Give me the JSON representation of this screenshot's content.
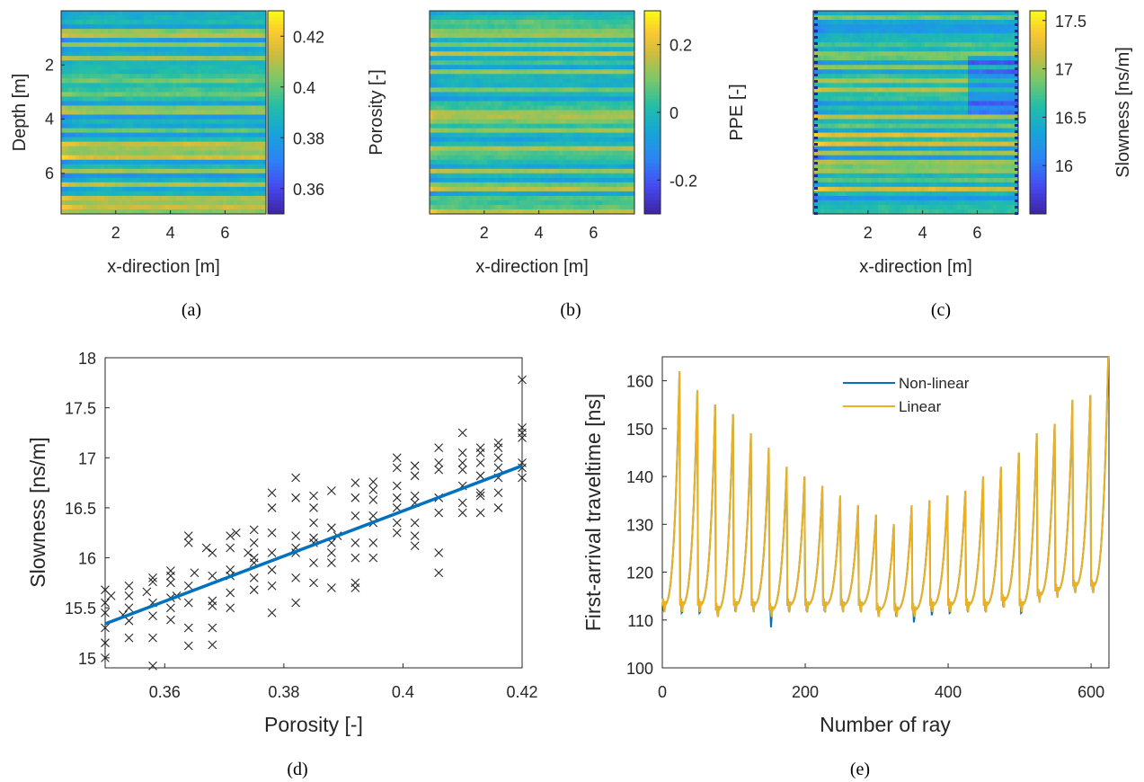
{
  "colors": {
    "series_nonlinear": "#0072BD",
    "series_linear": "#EDB120",
    "fit_line": "#0072BD",
    "scatter_marker": "#262626",
    "colormap": "parula"
  },
  "chart_data": [
    {
      "panel": "(a)",
      "type": "heatmap",
      "xlabel": "x-direction [m]",
      "ylabel": "Depth [m]",
      "colorbar_label": "Porosity [-]",
      "x_ticks": [
        "2",
        "4",
        "6"
      ],
      "y_ticks": [
        "2",
        "4",
        "6"
      ],
      "colorbar_ticks": [
        "0.42",
        "0.4",
        "0.38",
        "0.36"
      ],
      "colorbar_tick_values": [
        0.42,
        0.4,
        0.38,
        0.36
      ],
      "color_range": [
        0.35,
        0.43
      ],
      "xlim": [
        0,
        7.5
      ],
      "ylim": [
        0,
        7.5
      ],
      "y_reversed": true,
      "seed": 11
    },
    {
      "panel": "(b)",
      "type": "heatmap",
      "xlabel": "x-direction [m]",
      "ylabel": "",
      "colorbar_label": "PPE [-]",
      "x_ticks": [
        "2",
        "4",
        "6"
      ],
      "y_ticks": [],
      "colorbar_ticks": [
        "0.2",
        "0",
        "-0.2"
      ],
      "colorbar_tick_values": [
        0.2,
        0.0,
        -0.2
      ],
      "color_range": [
        -0.3,
        0.3
      ],
      "xlim": [
        0,
        7.5
      ],
      "ylim": [
        0,
        7.5
      ],
      "y_reversed": true,
      "seed": 23
    },
    {
      "panel": "(c)",
      "type": "heatmap",
      "xlabel": "x-direction [m]",
      "ylabel": "",
      "colorbar_label": "Slowness [ns/m]",
      "x_ticks": [
        "2",
        "4",
        "6"
      ],
      "y_ticks": [],
      "colorbar_ticks": [
        "17.5",
        "17",
        "16.5",
        "16"
      ],
      "colorbar_tick_values": [
        17.5,
        17.0,
        16.5,
        16.0
      ],
      "color_range": [
        15.5,
        17.6
      ],
      "xlim": [
        0,
        7.5
      ],
      "ylim": [
        0,
        7.5
      ],
      "y_reversed": true,
      "borehole_markers": true,
      "seed": 37
    },
    {
      "panel": "(d)",
      "type": "scatter",
      "xlabel": "Porosity [-]",
      "ylabel": "Slowness [ns/m]",
      "xlim": [
        0.35,
        0.42
      ],
      "ylim": [
        14.9,
        18
      ],
      "x_ticks": [
        0.36,
        0.38,
        0.4,
        0.42
      ],
      "x_tick_labels": [
        "0.36",
        "0.38",
        "0.4",
        "0.42"
      ],
      "y_ticks": [
        15,
        15.5,
        16,
        16.5,
        17,
        17.5,
        18
      ],
      "y_tick_labels": [
        "15",
        "15.5",
        "16",
        "16.5",
        "17",
        "17.5",
        "18"
      ],
      "fit_line": {
        "x": [
          0.35,
          0.42
        ],
        "y": [
          15.34,
          16.92
        ]
      },
      "points": [
        [
          0.35,
          15.0
        ],
        [
          0.35,
          15.15
        ],
        [
          0.35,
          15.3
        ],
        [
          0.35,
          15.45
        ],
        [
          0.35,
          15.55
        ],
        [
          0.35,
          15.68
        ],
        [
          0.351,
          15.62
        ],
        [
          0.354,
          15.2
        ],
        [
          0.354,
          15.37
        ],
        [
          0.354,
          15.5
        ],
        [
          0.354,
          15.62
        ],
        [
          0.354,
          15.72
        ],
        [
          0.353,
          15.43
        ],
        [
          0.358,
          14.92
        ],
        [
          0.358,
          15.2
        ],
        [
          0.358,
          15.42
        ],
        [
          0.358,
          15.55
        ],
        [
          0.358,
          15.76
        ],
        [
          0.358,
          15.8
        ],
        [
          0.357,
          15.66
        ],
        [
          0.361,
          15.38
        ],
        [
          0.361,
          15.5
        ],
        [
          0.361,
          15.6
        ],
        [
          0.361,
          15.75
        ],
        [
          0.361,
          15.87
        ],
        [
          0.362,
          15.62
        ],
        [
          0.361,
          15.82
        ],
        [
          0.364,
          15.12
        ],
        [
          0.364,
          15.3
        ],
        [
          0.364,
          15.55
        ],
        [
          0.364,
          15.72
        ],
        [
          0.364,
          16.15
        ],
        [
          0.364,
          16.22
        ],
        [
          0.365,
          15.85
        ],
        [
          0.368,
          15.13
        ],
        [
          0.368,
          15.3
        ],
        [
          0.368,
          15.52
        ],
        [
          0.368,
          15.57
        ],
        [
          0.368,
          15.82
        ],
        [
          0.368,
          16.05
        ],
        [
          0.367,
          16.1
        ],
        [
          0.371,
          15.5
        ],
        [
          0.371,
          15.65
        ],
        [
          0.371,
          15.82
        ],
        [
          0.371,
          15.88
        ],
        [
          0.371,
          16.1
        ],
        [
          0.371,
          16.22
        ],
        [
          0.372,
          16.25
        ],
        [
          0.375,
          15.68
        ],
        [
          0.375,
          15.8
        ],
        [
          0.375,
          15.95
        ],
        [
          0.375,
          16.0
        ],
        [
          0.375,
          16.15
        ],
        [
          0.375,
          16.28
        ],
        [
          0.374,
          16.05
        ],
        [
          0.378,
          15.45
        ],
        [
          0.378,
          15.72
        ],
        [
          0.378,
          15.88
        ],
        [
          0.378,
          16.05
        ],
        [
          0.378,
          16.25
        ],
        [
          0.378,
          16.5
        ],
        [
          0.378,
          16.65
        ],
        [
          0.382,
          15.55
        ],
        [
          0.382,
          15.8
        ],
        [
          0.382,
          16.05
        ],
        [
          0.382,
          16.1
        ],
        [
          0.382,
          16.22
        ],
        [
          0.382,
          16.6
        ],
        [
          0.382,
          16.8
        ],
        [
          0.385,
          15.75
        ],
        [
          0.385,
          15.95
        ],
        [
          0.385,
          16.15
        ],
        [
          0.385,
          16.2
        ],
        [
          0.385,
          16.35
        ],
        [
          0.385,
          16.5
        ],
        [
          0.385,
          16.62
        ],
        [
          0.388,
          15.7
        ],
        [
          0.388,
          15.95
        ],
        [
          0.388,
          16.05
        ],
        [
          0.388,
          16.15
        ],
        [
          0.388,
          16.3
        ],
        [
          0.388,
          16.67
        ],
        [
          0.389,
          16.22
        ],
        [
          0.392,
          15.7
        ],
        [
          0.392,
          15.75
        ],
        [
          0.392,
          16.0
        ],
        [
          0.392,
          16.15
        ],
        [
          0.392,
          16.42
        ],
        [
          0.392,
          16.6
        ],
        [
          0.392,
          16.75
        ],
        [
          0.395,
          16.0
        ],
        [
          0.395,
          16.15
        ],
        [
          0.395,
          16.35
        ],
        [
          0.395,
          16.42
        ],
        [
          0.395,
          16.58
        ],
        [
          0.395,
          16.68
        ],
        [
          0.395,
          16.76
        ],
        [
          0.399,
          16.25
        ],
        [
          0.399,
          16.35
        ],
        [
          0.399,
          16.5
        ],
        [
          0.399,
          16.6
        ],
        [
          0.399,
          16.72
        ],
        [
          0.399,
          16.9
        ],
        [
          0.399,
          17.0
        ],
        [
          0.402,
          16.12
        ],
        [
          0.402,
          16.22
        ],
        [
          0.402,
          16.35
        ],
        [
          0.402,
          16.55
        ],
        [
          0.402,
          16.62
        ],
        [
          0.402,
          16.82
        ],
        [
          0.402,
          16.92
        ],
        [
          0.406,
          15.85
        ],
        [
          0.406,
          16.05
        ],
        [
          0.406,
          16.45
        ],
        [
          0.406,
          16.6
        ],
        [
          0.406,
          16.88
        ],
        [
          0.406,
          16.95
        ],
        [
          0.406,
          17.1
        ],
        [
          0.41,
          16.45
        ],
        [
          0.41,
          16.55
        ],
        [
          0.41,
          16.72
        ],
        [
          0.41,
          16.88
        ],
        [
          0.41,
          16.95
        ],
        [
          0.41,
          17.05
        ],
        [
          0.41,
          17.25
        ],
        [
          0.413,
          16.45
        ],
        [
          0.413,
          16.62
        ],
        [
          0.413,
          16.65
        ],
        [
          0.413,
          16.82
        ],
        [
          0.413,
          16.95
        ],
        [
          0.413,
          17.05
        ],
        [
          0.413,
          17.1
        ],
        [
          0.416,
          16.5
        ],
        [
          0.416,
          16.65
        ],
        [
          0.416,
          16.8
        ],
        [
          0.416,
          16.9
        ],
        [
          0.416,
          17.0
        ],
        [
          0.416,
          17.1
        ],
        [
          0.416,
          17.15
        ],
        [
          0.42,
          16.8
        ],
        [
          0.42,
          16.9
        ],
        [
          0.42,
          16.95
        ],
        [
          0.42,
          17.2
        ],
        [
          0.42,
          17.25
        ],
        [
          0.42,
          17.3
        ],
        [
          0.42,
          17.78
        ]
      ]
    },
    {
      "panel": "(e)",
      "type": "line",
      "xlabel": "Number of ray",
      "ylabel": "First-arrival traveltime [ns]",
      "xlim": [
        0,
        625
      ],
      "ylim": [
        100,
        165
      ],
      "x_ticks": [
        0,
        200,
        400,
        600
      ],
      "x_tick_labels": [
        "0",
        "200",
        "400",
        "600"
      ],
      "y_ticks": [
        100,
        110,
        120,
        130,
        140,
        150,
        160
      ],
      "y_tick_labels": [
        "100",
        "110",
        "120",
        "130",
        "140",
        "150",
        "160"
      ],
      "legend_position": "top-right",
      "series": [
        {
          "name": "Non-linear"
        },
        {
          "name": "Linear"
        }
      ],
      "ray_groups": 25,
      "rays_per_group": 25,
      "peaks": [
        162,
        158,
        155,
        153,
        149,
        146,
        142,
        140,
        138,
        136,
        134,
        132,
        130,
        134,
        135,
        136,
        137,
        140,
        142,
        145,
        149,
        151,
        156,
        157,
        165
      ],
      "baseline": [
        113,
        113,
        113,
        112,
        113,
        113,
        112,
        113,
        113,
        113,
        113,
        113,
        112,
        112,
        112,
        113,
        113,
        113,
        113,
        114,
        113,
        115,
        116,
        117,
        117
      ],
      "nonlinear_min": [
        112,
        111.5,
        111.5,
        111.5,
        112,
        112.5,
        108.5,
        112,
        112,
        112,
        112.5,
        112.5,
        111.5,
        111,
        109.5,
        111,
        111.5,
        112,
        112,
        113,
        111.5,
        115.5,
        116,
        116.5,
        116.5
      ]
    }
  ],
  "captions": [
    "(a)",
    "(b)",
    "(c)",
    "(d)",
    "(e)"
  ]
}
